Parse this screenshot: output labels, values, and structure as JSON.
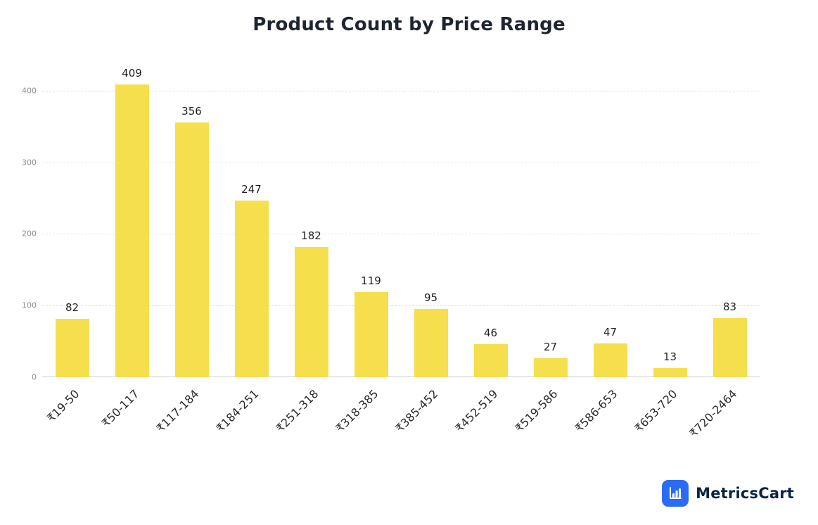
{
  "title": "Product Count by Price Range",
  "chart_data": {
    "type": "bar",
    "title": "Product Count by Price Range",
    "categories": [
      "₹19-50",
      "₹50-117",
      "₹117-184",
      "₹184-251",
      "₹251-318",
      "₹318-385",
      "₹385-452",
      "₹452-519",
      "₹519-586",
      "₹586-653",
      "₹653-720",
      "₹720-2464"
    ],
    "values": [
      82,
      409,
      356,
      247,
      182,
      119,
      95,
      46,
      27,
      47,
      13,
      83
    ],
    "xlabel": "",
    "ylabel": "",
    "ylim": [
      0,
      440
    ],
    "yticks": [
      0,
      100,
      200,
      300,
      400
    ],
    "bar_color": "#F5DF4D",
    "grid": "horizontal-dashed",
    "legend": "none",
    "value_labels": "above-bars"
  },
  "branding": {
    "logo_text": "MetricsCart",
    "logo_icon": "bar-chart-icon",
    "icon_bg_color": "#2B6CF6",
    "text_color": "#0A2540"
  }
}
